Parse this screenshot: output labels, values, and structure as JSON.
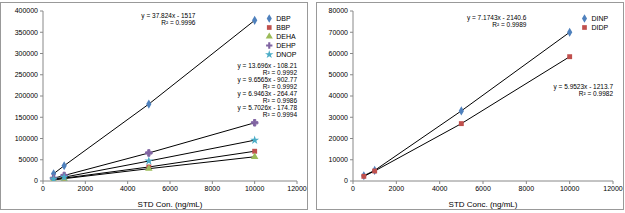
{
  "chart_data": [
    {
      "type": "scatter",
      "x_label": "STD Con. (ng/mL)",
      "xlim": [
        0,
        12000
      ],
      "xticks": [
        0,
        2000,
        4000,
        6000,
        8000,
        10000,
        12000
      ],
      "ylim": [
        0,
        400000
      ],
      "yticks": [
        0,
        50000,
        100000,
        150000,
        200000,
        250000,
        300000,
        350000,
        400000
      ],
      "grid": false,
      "legend": "upper right",
      "series": [
        {
          "name": "DBP",
          "color": "#4F81BD",
          "marker": "diamond",
          "x": [
            500,
            1000,
            5000,
            10000
          ],
          "values": [
            17000,
            36000,
            181000,
            378000
          ],
          "equation": "y = 37.824x - 1517",
          "r2": "R² = 0.9996"
        },
        {
          "name": "BBP",
          "color": "#C0504D",
          "marker": "square",
          "x": [
            500,
            1000,
            5000,
            10000
          ],
          "values": [
            3300,
            6800,
            33000,
            70000
          ],
          "equation": "y = 6.9463x - 264.47",
          "r2": "R² = 0.9986"
        },
        {
          "name": "DEHA",
          "color": "#9BBB59",
          "marker": "triangle",
          "x": [
            500,
            1000,
            5000,
            10000
          ],
          "values": [
            2700,
            5500,
            29000,
            57000
          ],
          "equation": "y = 5.7026x - 174.78",
          "r2": "R² = 0.9994"
        },
        {
          "name": "DEHP",
          "color": "#8064A2",
          "marker": "cross",
          "x": [
            500,
            1000,
            5000,
            10000
          ],
          "values": [
            6500,
            13000,
            66000,
            137000
          ],
          "equation": "y = 13.696x - 108.21",
          "r2": "R² = 0.9992"
        },
        {
          "name": "DNOP",
          "color": "#4BACC6",
          "marker": "star",
          "x": [
            500,
            1000,
            5000,
            10000
          ],
          "values": [
            4000,
            9000,
            47000,
            96000
          ],
          "equation": "y = 9.6565x - 902.77",
          "r2": "R² = 0.9992"
        }
      ]
    },
    {
      "type": "scatter",
      "x_label": "STD Conc. (ng/mL)",
      "xlim": [
        0,
        12000
      ],
      "xticks": [
        0,
        2000,
        4000,
        6000,
        8000,
        10000,
        12000
      ],
      "ylim": [
        0,
        80000
      ],
      "yticks": [
        0,
        10000,
        20000,
        30000,
        40000,
        50000,
        60000,
        70000,
        80000
      ],
      "grid": false,
      "legend": "upper right",
      "series": [
        {
          "name": "DINP",
          "color": "#4F81BD",
          "marker": "diamond",
          "x": [
            500,
            1000,
            5000,
            10000
          ],
          "values": [
            2500,
            5000,
            33000,
            70000
          ],
          "equation": "y = 7.1743x - 2140.6",
          "r2": "R² = 0.9989"
        },
        {
          "name": "DIDP",
          "color": "#C0504D",
          "marker": "square",
          "x": [
            500,
            1000,
            5000,
            10000
          ],
          "values": [
            2200,
            4700,
            27000,
            58500
          ],
          "equation": "y = 5.9523x - 1213.7",
          "r2": "R² = 0.9982"
        }
      ]
    }
  ]
}
